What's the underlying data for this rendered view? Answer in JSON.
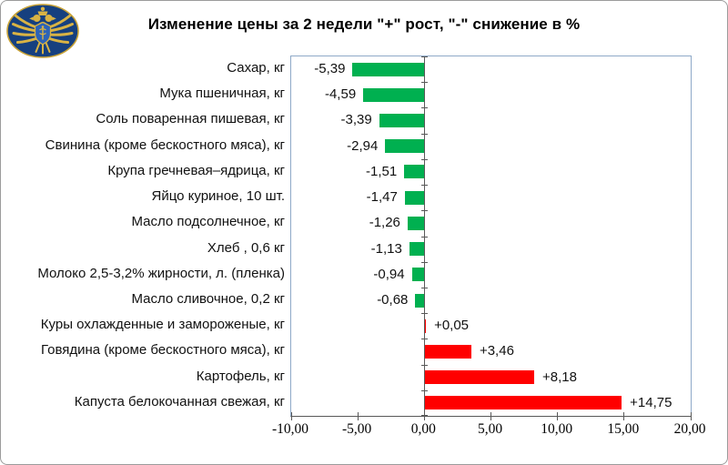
{
  "header": {
    "logo_icon": "fas-russia-emblem",
    "title": "Изменение цены за 2 недели \"+\" рост, \"-\" снижение в %"
  },
  "chart_data": {
    "type": "bar",
    "orientation": "horizontal",
    "title": "Изменение цены за 2 недели \"+\" рост, \"-\" снижение в %",
    "categories": [
      "Сахар, кг",
      "Мука пшеничная, кг",
      "Соль поваренная пишевая, кг",
      "Свинина (кроме бескостного мяса), кг",
      "Крупа гречневая–ядрица, кг",
      "Яйцо куриное, 10 шт.",
      "Масло подсолнечное, кг",
      "Хлеб , 0,6 кг",
      "Молоко 2,5-3,2% жирности, л. (пленка)",
      "Масло сливочное, 0,2 кг",
      "Куры охлажденные и замороженые, кг",
      "Говядина (кроме бескостного мяса), кг",
      "Картофель, кг",
      "Капуста белокочанная свежая, кг"
    ],
    "values": [
      -5.39,
      -4.59,
      -3.39,
      -2.94,
      -1.51,
      -1.47,
      -1.26,
      -1.13,
      -0.94,
      -0.68,
      0.05,
      3.46,
      8.18,
      14.75
    ],
    "value_labels": [
      "-5,39",
      "-4,59",
      "-3,39",
      "-2,94",
      "-1,51",
      "-1,47",
      "-1,26",
      "-1,13",
      "-0,94",
      "-0,68",
      "+0,05",
      "+3,46",
      "+8,18",
      "+14,75"
    ],
    "xlim": [
      -10,
      20
    ],
    "x_ticks": [
      -10,
      -5,
      0,
      5,
      10,
      15,
      20
    ],
    "x_tick_labels": [
      "-10,00",
      "-5,00",
      "0,00",
      "5,00",
      "10,00",
      "15,00",
      "20,00"
    ],
    "xlabel": "",
    "ylabel": "",
    "legend": "none",
    "grid": "none",
    "colors": {
      "negative": "#00B050",
      "positive": "#FF0000",
      "axis": "#595959",
      "plot_border": "#8EA9C8"
    }
  }
}
